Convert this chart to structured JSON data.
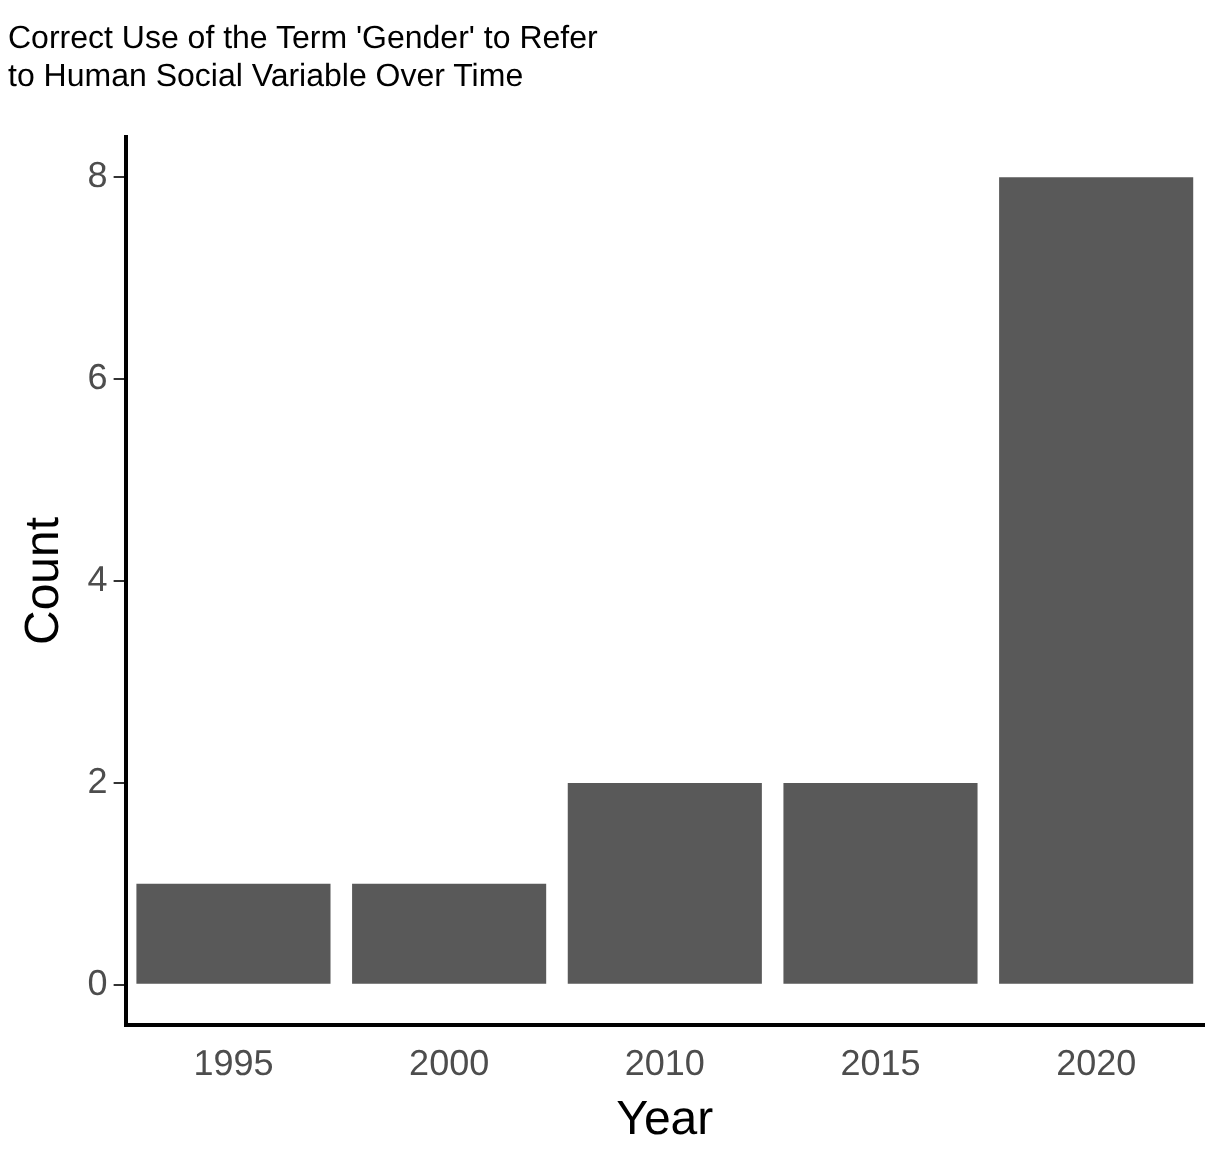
{
  "chart_data": {
    "type": "bar",
    "title": "Correct Use of the Term 'Gender' to Refer\nto Human Social Variable Over Time",
    "xlabel": "Year",
    "ylabel": "Count",
    "categories": [
      "1995",
      "2000",
      "2010",
      "2015",
      "2020"
    ],
    "values": [
      1,
      1,
      2,
      2,
      8
    ],
    "color": "#595959",
    "ylim": [
      -0.4,
      8.4
    ],
    "yticks": [
      0,
      2,
      4,
      6,
      8
    ],
    "grid": false,
    "legend": false
  }
}
